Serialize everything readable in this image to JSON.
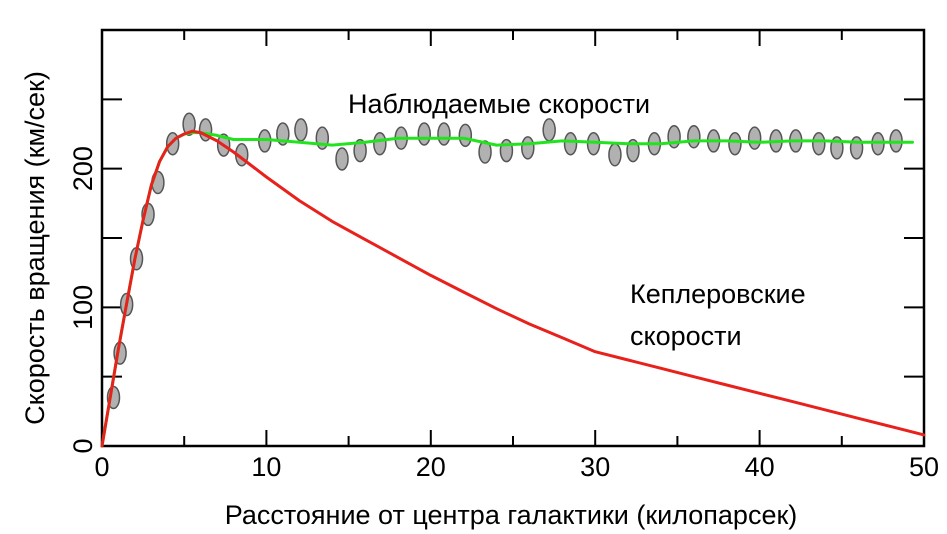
{
  "chart_data": {
    "type": "scatter",
    "xlabel": "Расстояние от центра галактики (килопарсек)",
    "ylabel": "Скорость вращения (км/сек)",
    "xlim": [
      0,
      50
    ],
    "ylim": [
      0,
      300
    ],
    "x_ticks": [
      0,
      10,
      20,
      30,
      40,
      50
    ],
    "x_tick_labels": [
      "0",
      "10",
      "20",
      "30",
      "40",
      "50"
    ],
    "y_ticks": [
      0,
      100,
      200
    ],
    "y_tick_labels": [
      "0",
      "100",
      "200"
    ],
    "grid": false,
    "annotations": {
      "observed": "Наблюдаемые скорости",
      "keplerian_line1": "Кеплеровские",
      "keplerian_line2": "скорости"
    },
    "colors": {
      "observed_line": "#22e41e",
      "keplerian_line": "#e8211c",
      "points_fill": "#a8a8a8",
      "points_stroke": "#555555"
    },
    "series": [
      {
        "kind": "points",
        "x": [
          0.7,
          1.1,
          1.5,
          2.1,
          2.8,
          3.4,
          4.3,
          5.3,
          6.3,
          7.4,
          8.5,
          9.9,
          11.0,
          12.1,
          13.4,
          14.6,
          15.7,
          16.9,
          18.2,
          19.6,
          20.8,
          22.1,
          23.3,
          24.6,
          25.9,
          27.2,
          28.5,
          29.9,
          31.2,
          32.3,
          33.6,
          34.8,
          36.0,
          37.2,
          38.5,
          39.7,
          41.0,
          42.2,
          43.6,
          44.7,
          45.9,
          47.2,
          48.3
        ],
        "values": [
          35,
          67,
          102,
          135,
          167,
          190,
          218,
          232,
          228,
          217,
          210,
          220,
          225,
          228,
          222,
          207,
          213,
          218,
          222,
          225,
          225,
          224,
          212,
          213,
          215,
          228,
          218,
          218,
          210,
          213,
          218,
          223,
          223,
          220,
          218,
          222,
          220,
          220,
          218,
          215,
          215,
          218,
          220
        ]
      },
      {
        "kind": "line",
        "x": [
          0,
          0.5,
          1,
          1.5,
          2,
          2.5,
          3,
          3.5,
          4,
          4.5,
          5,
          5.5,
          6,
          7,
          8,
          10,
          12,
          14,
          16,
          18,
          20,
          22,
          24,
          26,
          28,
          30,
          32,
          34,
          36,
          38,
          40,
          42,
          44,
          46,
          48,
          49.3
        ],
        "values": [
          0,
          35,
          70,
          103,
          135,
          163,
          188,
          205,
          216,
          222,
          225,
          226,
          226,
          224,
          221,
          221,
          219,
          217,
          219,
          222,
          222,
          222,
          217,
          218,
          220,
          219,
          218,
          218,
          220,
          220,
          219,
          220,
          220,
          219,
          219,
          219
        ]
      },
      {
        "kind": "line",
        "x": [
          0,
          0.5,
          1,
          1.5,
          2,
          2.5,
          3,
          3.5,
          4,
          4.5,
          5,
          5.5,
          6,
          7,
          8,
          9,
          10,
          12,
          14,
          16,
          18,
          20,
          22,
          24,
          26,
          28,
          30,
          32,
          34,
          36,
          38,
          40,
          42,
          44,
          46,
          48,
          50
        ],
        "values": [
          0,
          35,
          70,
          103,
          135,
          163,
          188,
          205,
          216,
          222,
          225,
          227,
          226,
          220,
          212,
          203,
          194,
          177,
          162,
          149,
          136,
          123,
          111,
          99,
          88,
          78,
          68,
          62,
          56,
          50,
          44,
          38,
          32,
          26,
          20,
          14,
          8
        ]
      }
    ]
  }
}
